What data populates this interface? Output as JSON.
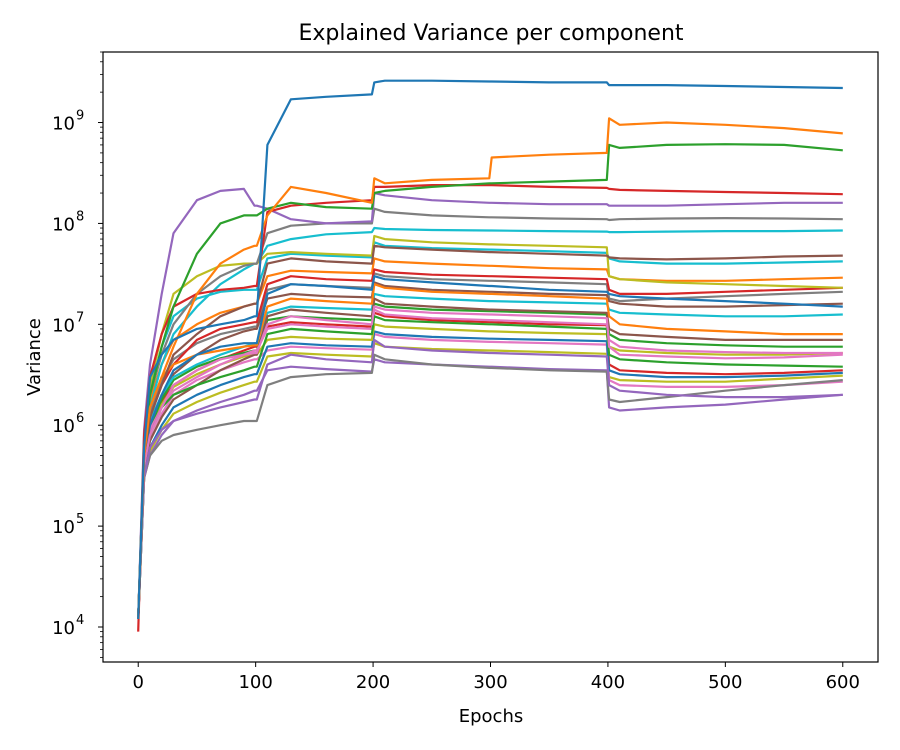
{
  "chart_data": {
    "type": "line",
    "title": "Explained Variance per component",
    "xlabel": "Epochs",
    "ylabel": "Variance",
    "xlim": [
      -30,
      630
    ],
    "ylim": [
      4500,
      5000000000
    ],
    "yscale": "log",
    "xticks": [
      0,
      100,
      200,
      300,
      400,
      500,
      600
    ],
    "xtick_labels": [
      "0",
      "100",
      "200",
      "300",
      "400",
      "500",
      "600"
    ],
    "yticks": [
      10000,
      100000,
      1000000,
      10000000,
      100000000,
      1000000000
    ],
    "ytick_labels": [
      {
        "base": "10",
        "exp": "4"
      },
      {
        "base": "10",
        "exp": "5"
      },
      {
        "base": "10",
        "exp": "6"
      },
      {
        "base": "10",
        "exp": "7"
      },
      {
        "base": "10",
        "exp": "8"
      },
      {
        "base": "10",
        "exp": "9"
      }
    ],
    "grid": false,
    "legend": "none",
    "palette": [
      "#1f77b4",
      "#ff7f0e",
      "#2ca02c",
      "#d62728",
      "#9467bd",
      "#8c564b",
      "#e377c2",
      "#7f7f7f",
      "#bcbd22",
      "#17becf"
    ],
    "x": [
      0,
      5,
      10,
      20,
      30,
      50,
      70,
      90,
      99,
      101,
      110,
      130,
      160,
      199,
      201,
      210,
      250,
      299,
      301,
      350,
      399,
      401,
      410,
      450,
      500,
      550,
      600
    ],
    "series": [
      {
        "values": [
          12000,
          600000,
          3000000,
          5000000,
          7000000,
          9000000,
          10000000,
          11000000,
          12000000,
          12000000,
          600000000,
          1700000000,
          1800000000,
          1900000000,
          2500000000,
          2600000000,
          2600000000,
          2550000000,
          2550000000,
          2500000000,
          2500000000,
          2350000000,
          2350000000,
          2350000000,
          2300000000,
          2250000000,
          2200000000
        ]
      },
      {
        "values": [
          12000,
          500000,
          1500000,
          3000000,
          6000000,
          20000000,
          40000000,
          55000000,
          60000000,
          60000000,
          120000000,
          230000000,
          200000000,
          160000000,
          280000000,
          250000000,
          270000000,
          280000000,
          450000000,
          480000000,
          500000000,
          1100000000,
          950000000,
          1000000000,
          950000000,
          880000000,
          780000000
        ]
      },
      {
        "values": [
          12000,
          600000,
          2000000,
          6000000,
          15000000,
          50000000,
          100000000,
          120000000,
          120000000,
          120000000,
          140000000,
          160000000,
          145000000,
          140000000,
          200000000,
          210000000,
          230000000,
          250000000,
          250000000,
          260000000,
          270000000,
          600000000,
          560000000,
          600000000,
          610000000,
          600000000,
          530000000
        ]
      },
      {
        "values": [
          9000,
          800000,
          3000000,
          8000000,
          15000000,
          20000000,
          22000000,
          23000000,
          24000000,
          24000000,
          130000000,
          150000000,
          160000000,
          170000000,
          230000000,
          230000000,
          240000000,
          240000000,
          240000000,
          230000000,
          225000000,
          220000000,
          215000000,
          210000000,
          205000000,
          200000000,
          195000000
        ]
      },
      {
        "values": [
          12000,
          900000,
          4000000,
          20000000,
          80000000,
          170000000,
          210000000,
          220000000,
          150000000,
          150000000,
          140000000,
          110000000,
          100000000,
          105000000,
          200000000,
          190000000,
          170000000,
          160000000,
          160000000,
          155000000,
          155000000,
          150000000,
          150000000,
          150000000,
          155000000,
          160000000,
          160000000
        ]
      },
      {
        "values": [
          12000,
          500000,
          1200000,
          2500000,
          5000000,
          8000000,
          12000000,
          15000000,
          16000000,
          16000000,
          40000000,
          45000000,
          42000000,
          40000000,
          60000000,
          58000000,
          55000000,
          52000000,
          52000000,
          50000000,
          48000000,
          46000000,
          45000000,
          44000000,
          45000000,
          47000000,
          48000000
        ]
      },
      {
        "values": [
          12000,
          400000,
          800000,
          1500000,
          2500000,
          3500000,
          4500000,
          5000000,
          5200000,
          5200000,
          10000000,
          12000000,
          11000000,
          10000000,
          15000000,
          14000000,
          13000000,
          12500000,
          12500000,
          12000000,
          11500000,
          6000000,
          5000000,
          4800000,
          4600000,
          4700000,
          5000000
        ]
      },
      {
        "values": [
          12000,
          700000,
          2000000,
          5000000,
          10000000,
          20000000,
          30000000,
          38000000,
          40000000,
          40000000,
          80000000,
          95000000,
          100000000,
          100000000,
          140000000,
          130000000,
          120000000,
          115000000,
          115000000,
          112000000,
          110000000,
          108000000,
          110000000,
          112000000,
          113000000,
          112000000,
          110000000
        ]
      },
      {
        "values": [
          12000,
          600000,
          2500000,
          8000000,
          20000000,
          30000000,
          38000000,
          40000000,
          40000000,
          40000000,
          50000000,
          52000000,
          50000000,
          48000000,
          75000000,
          70000000,
          65000000,
          62000000,
          62000000,
          60000000,
          58000000,
          30000000,
          28000000,
          26000000,
          25000000,
          24000000,
          23000000
        ]
      },
      {
        "values": [
          12000,
          500000,
          1500000,
          4000000,
          8000000,
          15000000,
          25000000,
          35000000,
          40000000,
          40000000,
          60000000,
          70000000,
          78000000,
          82000000,
          90000000,
          88000000,
          86000000,
          85000000,
          85000000,
          84000000,
          83000000,
          82000000,
          82000000,
          83000000,
          84000000,
          84000000,
          85000000
        ]
      },
      {
        "values": [
          12000,
          500000,
          1000000,
          2000000,
          3500000,
          5000000,
          6000000,
          6500000,
          6500000,
          6500000,
          20000000,
          25000000,
          24000000,
          22000000,
          30000000,
          28000000,
          26000000,
          24000000,
          24000000,
          22000000,
          21000000,
          20000000,
          19000000,
          18000000,
          17000000,
          16000000,
          15000000
        ]
      },
      {
        "values": [
          12000,
          600000,
          1500000,
          3000000,
          4000000,
          5000000,
          5500000,
          6000000,
          6200000,
          6200000,
          15000000,
          18000000,
          17000000,
          16000000,
          25000000,
          23000000,
          21000000,
          20000000,
          20000000,
          19000000,
          18000000,
          12000000,
          10000000,
          9000000,
          8500000,
          8000000,
          8000000
        ]
      },
      {
        "values": [
          12000,
          400000,
          800000,
          1500000,
          2000000,
          2500000,
          3000000,
          3500000,
          3800000,
          3800000,
          8000000,
          9000000,
          8500000,
          8000000,
          12000000,
          11000000,
          10500000,
          10000000,
          10000000,
          9500000,
          9000000,
          5000000,
          4500000,
          4200000,
          4000000,
          3900000,
          3800000
        ]
      },
      {
        "values": [
          12000,
          500000,
          1200000,
          2500000,
          4000000,
          7000000,
          9000000,
          10000000,
          10500000,
          10500000,
          25000000,
          30000000,
          28000000,
          27000000,
          35000000,
          33000000,
          31000000,
          30000000,
          30000000,
          29000000,
          28000000,
          22000000,
          20000000,
          20000000,
          21000000,
          22000000,
          23000000
        ]
      },
      {
        "values": [
          12000,
          300000,
          600000,
          900000,
          1100000,
          1300000,
          1500000,
          1700000,
          1800000,
          1800000,
          4000000,
          5000000,
          4500000,
          4200000,
          7000000,
          6000000,
          5500000,
          5200000,
          5200000,
          5000000,
          4800000,
          2500000,
          2200000,
          2000000,
          1900000,
          1900000,
          2000000
        ]
      },
      {
        "values": [
          12000,
          400000,
          700000,
          1200000,
          1800000,
          2500000,
          3500000,
          4500000,
          5000000,
          5000000,
          12000000,
          14000000,
          13000000,
          12000000,
          18000000,
          16000000,
          15000000,
          14000000,
          14000000,
          13500000,
          13000000,
          9000000,
          8000000,
          7500000,
          7000000,
          7000000,
          7000000
        ]
      },
      {
        "values": [
          12000,
          500000,
          900000,
          1500000,
          2200000,
          3000000,
          4000000,
          5000000,
          5500000,
          5500000,
          9000000,
          10000000,
          9500000,
          9000000,
          14000000,
          12500000,
          11500000,
          11000000,
          11000000,
          10500000,
          10000000,
          7000000,
          6000000,
          5500000,
          5300000,
          5200000,
          5200000
        ]
      },
      {
        "values": [
          12000,
          300000,
          500000,
          700000,
          800000,
          900000,
          1000000,
          1100000,
          1100000,
          1100000,
          2500000,
          3000000,
          3200000,
          3300000,
          5000000,
          4500000,
          4000000,
          3700000,
          3700000,
          3500000,
          3400000,
          1800000,
          1700000,
          1900000,
          2200000,
          2500000,
          2800000
        ]
      },
      {
        "values": [
          12000,
          400000,
          800000,
          1600000,
          2400000,
          3200000,
          4000000,
          4800000,
          5000000,
          5000000,
          7000000,
          7500000,
          7200000,
          7000000,
          10000000,
          9500000,
          9000000,
          8500000,
          8500000,
          8200000,
          8000000,
          6000000,
          5500000,
          5200000,
          5000000,
          5000000,
          5200000
        ]
      },
      {
        "values": [
          12000,
          500000,
          1100000,
          2000000,
          3000000,
          4000000,
          5000000,
          6000000,
          6500000,
          6500000,
          13000000,
          15000000,
          14500000,
          14000000,
          20000000,
          19000000,
          18000000,
          17000000,
          17000000,
          16500000,
          16000000,
          14000000,
          13000000,
          12500000,
          12000000,
          12000000,
          12500000
        ]
      },
      {
        "values": [
          12000,
          300000,
          600000,
          1000000,
          1500000,
          2000000,
          2500000,
          3000000,
          3200000,
          3200000,
          6000000,
          6500000,
          6200000,
          6000000,
          8500000,
          8000000,
          7500000,
          7200000,
          7200000,
          7000000,
          6800000,
          3500000,
          3200000,
          3000000,
          3000000,
          3100000,
          3300000
        ]
      },
      {
        "values": [
          12000,
          600000,
          1800000,
          4000000,
          7000000,
          10000000,
          13000000,
          15000000,
          16000000,
          16000000,
          30000000,
          34000000,
          33000000,
          32000000,
          45000000,
          42000000,
          40000000,
          38000000,
          38000000,
          36000000,
          35000000,
          30000000,
          28000000,
          27000000,
          27000000,
          28000000,
          29000000
        ]
      },
      {
        "values": [
          12000,
          400000,
          900000,
          1800000,
          2800000,
          3800000,
          4600000,
          5200000,
          5500000,
          5500000,
          11000000,
          12000000,
          11500000,
          11000000,
          16000000,
          15000000,
          14000000,
          13500000,
          13500000,
          13000000,
          12500000,
          8000000,
          7000000,
          6500000,
          6200000,
          6000000,
          6000000
        ]
      },
      {
        "values": [
          12000,
          500000,
          1000000,
          1700000,
          2500000,
          3500000,
          4500000,
          5500000,
          6000000,
          6000000,
          9500000,
          10500000,
          10000000,
          9500000,
          13000000,
          12000000,
          11000000,
          10500000,
          10500000,
          10000000,
          9800000,
          4000000,
          3500000,
          3300000,
          3200000,
          3300000,
          3500000
        ]
      },
      {
        "values": [
          12000,
          300000,
          500000,
          800000,
          1100000,
          1400000,
          1700000,
          2000000,
          2200000,
          2200000,
          3500000,
          3800000,
          3600000,
          3400000,
          4500000,
          4200000,
          4000000,
          3800000,
          3800000,
          3600000,
          3500000,
          1500000,
          1400000,
          1500000,
          1600000,
          1800000,
          2000000
        ]
      },
      {
        "values": [
          12000,
          450000,
          950000,
          1900000,
          3200000,
          5000000,
          7000000,
          8500000,
          9000000,
          9000000,
          18000000,
          20000000,
          19000000,
          18500000,
          26000000,
          24000000,
          22000000,
          21000000,
          21000000,
          20000000,
          19500000,
          17000000,
          16000000,
          15000000,
          15000000,
          15500000,
          16000000
        ]
      },
      {
        "values": [
          12000,
          350000,
          700000,
          1300000,
          2000000,
          2800000,
          3500000,
          4200000,
          4500000,
          4500000,
          5500000,
          6000000,
          5800000,
          5600000,
          8000000,
          7500000,
          7000000,
          6700000,
          6700000,
          6500000,
          6300000,
          2800000,
          2500000,
          2400000,
          2400000,
          2500000,
          2700000
        ]
      },
      {
        "values": [
          12000,
          550000,
          1300000,
          2800000,
          4500000,
          6500000,
          8000000,
          9000000,
          9500000,
          9500000,
          22000000,
          25000000,
          24000000,
          23000000,
          32000000,
          30000000,
          28000000,
          27000000,
          27000000,
          26000000,
          25000000,
          18000000,
          17000000,
          18000000,
          19000000,
          20000000,
          21000000
        ]
      },
      {
        "values": [
          12000,
          300000,
          550000,
          900000,
          1300000,
          1700000,
          2100000,
          2500000,
          2700000,
          2700000,
          4800000,
          5200000,
          5000000,
          4800000,
          6500000,
          6000000,
          5700000,
          5500000,
          5500000,
          5300000,
          5100000,
          3000000,
          2800000,
          2700000,
          2700000,
          2900000,
          3100000
        ]
      },
      {
        "values": [
          12000,
          650000,
          2200000,
          6000000,
          12000000,
          18000000,
          21000000,
          22000000,
          22000000,
          22000000,
          45000000,
          50000000,
          48000000,
          46000000,
          65000000,
          60000000,
          57000000,
          55000000,
          55000000,
          53000000,
          51000000,
          45000000,
          42000000,
          40000000,
          40000000,
          41000000,
          42000000
        ]
      }
    ]
  }
}
